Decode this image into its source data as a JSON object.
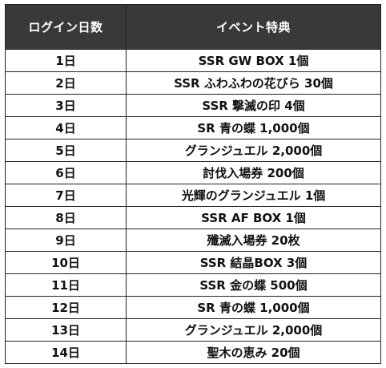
{
  "table": {
    "headers": [
      "ログイン日数",
      "イベント特典"
    ],
    "rows": [
      {
        "day": "1日",
        "reward": "SSR GW BOX 1個"
      },
      {
        "day": "2日",
        "reward": "SSR ふわふわの花びら 30個"
      },
      {
        "day": "3日",
        "reward": "SSR 撃滅の印 4個"
      },
      {
        "day": "4日",
        "reward": "SR 青の蝶 1,000個"
      },
      {
        "day": "5日",
        "reward": "グランジュエル 2,000個"
      },
      {
        "day": "6日",
        "reward": "討伐入場券 200個"
      },
      {
        "day": "7日",
        "reward": "光輝のグランジュエル 1個"
      },
      {
        "day": "8日",
        "reward": "SSR AF BOX 1個"
      },
      {
        "day": "9日",
        "reward": "殲滅入場券 20枚"
      },
      {
        "day": "10日",
        "reward": "SSR 結晶BOX 3個"
      },
      {
        "day": "11日",
        "reward": "SSR 金の蝶 500個"
      },
      {
        "day": "12日",
        "reward": "SR 青の蝶 1,000個"
      },
      {
        "day": "13日",
        "reward": "グランジュエル 2,000個"
      },
      {
        "day": "14日",
        "reward": "聖木の恵み 20個"
      }
    ]
  }
}
